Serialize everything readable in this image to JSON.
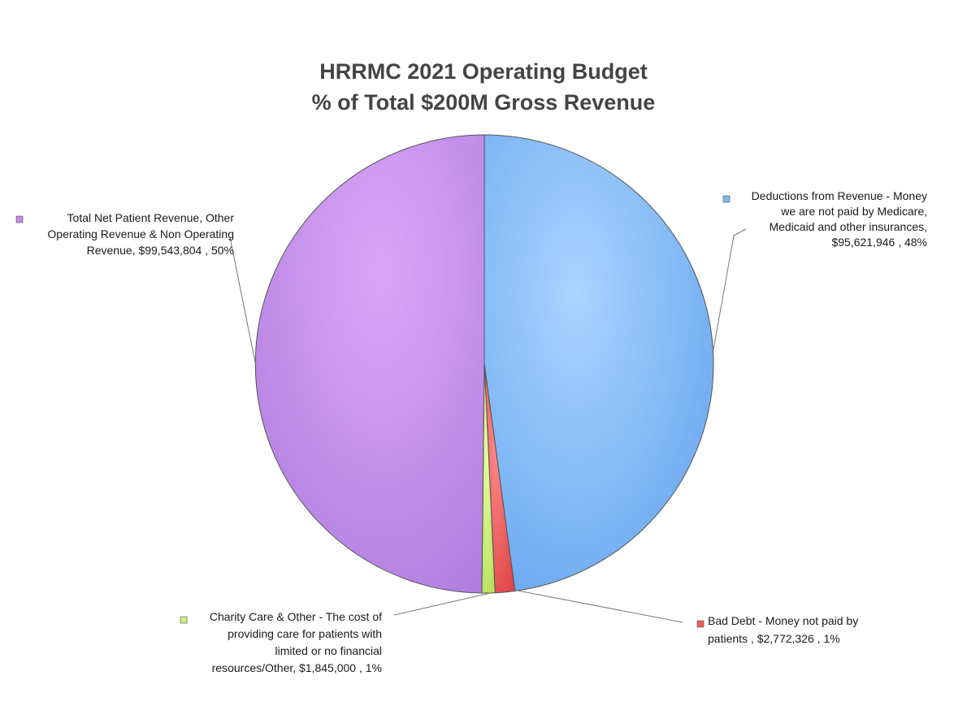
{
  "chart_data": {
    "type": "pie",
    "title": [
      "HRRMC 2021 Operating Budget",
      "% of Total $200M Gross Revenue"
    ],
    "slices": [
      {
        "name": "Deductions from Revenue - Money we are not paid by Medicare, Medicaid and other insurances",
        "value": 95621946,
        "percent_label": "48%",
        "color": "#7fb6f2",
        "label_lines": [
          "Deductions from Revenue - Money",
          "we are not paid by Medicare,",
          "Medicaid and other insurances,",
          "$95,621,946 , 48%"
        ]
      },
      {
        "name": "Bad Debt - Money not paid by patients",
        "value": 2772326,
        "percent_label": "1%",
        "color": "#ef5b5b",
        "label_lines": [
          "Bad Debt - Money not paid by",
          "patients ,  $2,772,326 , 1%"
        ]
      },
      {
        "name": "Charity Care & Other - The cost of providing care for patients with limited or no financial resources/Other",
        "value": 1845000,
        "percent_label": "1%",
        "color": "#cdee7a",
        "label_lines": [
          "Charity Care & Other - The cost of",
          "providing care for patients with",
          "limited or no financial",
          "resources/Other,  $1,845,000 , 1%"
        ]
      },
      {
        "name": "Total Net Patient Revenue, Other Operating Revenue & Non Operating Revenue",
        "value": 99543804,
        "percent_label": "50%",
        "color": "#c28ee8",
        "label_lines": [
          "Total Net Patient Revenue, Other",
          "Operating Revenue & Non Operating",
          "Revenue,  $99,543,804 , 50%"
        ]
      }
    ]
  }
}
